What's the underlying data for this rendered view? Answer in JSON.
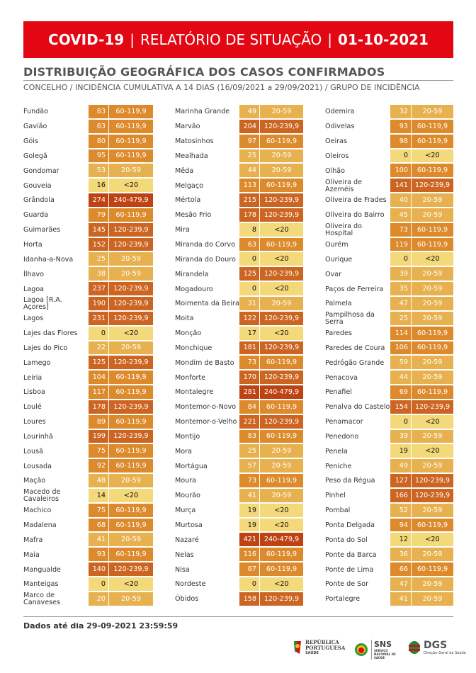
{
  "header": {
    "title": "COVID-19",
    "sep1": "|",
    "middle": "RELATÓRIO DE SITUAÇÃO",
    "sep2": "|",
    "date": "01-10-2021"
  },
  "title": "DISTRIBUIÇÃO GEOGRÁFICA DOS CASOS CONFIRMADOS",
  "subtitle": "CONCELHO / INCIDÊNCIA CUMULATIVA A 14 DIAS (16/09/2021 a 29/09/2021) / GRUPO DE INCIDÊNCIA",
  "band_colors": {
    "<20": "#f4d97a",
    "20-59": "#e8b14f",
    "60-119,9": "#dc8a2c",
    "120-239,9": "#cd6522",
    "240-479,9": "#bf4212"
  },
  "columns": [
    {
      "rows": [
        [
          "Fundão",
          "83",
          "60-119,9"
        ],
        [
          "Gavião",
          "63",
          "60-119,9"
        ],
        [
          "Góis",
          "80",
          "60-119,9"
        ],
        [
          "Golegã",
          "95",
          "60-119,9"
        ],
        [
          "Gondomar",
          "53",
          "20-59"
        ],
        [
          "Gouveia",
          "16",
          "<20"
        ],
        [
          "Grândola",
          "274",
          "240-479,9"
        ],
        [
          "Guarda",
          "79",
          "60-119,9"
        ],
        [
          "Guimarães",
          "145",
          "120-239,9"
        ],
        [
          "Horta",
          "152",
          "120-239,9"
        ],
        [
          "Idanha-a-Nova",
          "25",
          "20-59"
        ],
        [
          "Ílhavo",
          "38",
          "20-59"
        ],
        [
          "Lagoa",
          "237",
          "120-239,9"
        ],
        [
          "Lagoa [R.A. Açores]",
          "190",
          "120-239,9"
        ],
        [
          "Lagos",
          "231",
          "120-239,9"
        ],
        [
          "Lajes das Flores",
          "0",
          "<20"
        ],
        [
          "Lajes do Pico",
          "22",
          "20-59"
        ],
        [
          "Lamego",
          "125",
          "120-239,9"
        ],
        [
          "Leiria",
          "104",
          "60-119,9"
        ],
        [
          "Lisboa",
          "117",
          "60-119,9"
        ],
        [
          "Loulé",
          "178",
          "120-239,9"
        ],
        [
          "Loures",
          "89",
          "60-119,9"
        ],
        [
          "Lourinhã",
          "199",
          "120-239,9"
        ],
        [
          "Lousã",
          "75",
          "60-119,9"
        ],
        [
          "Lousada",
          "92",
          "60-119,9"
        ],
        [
          "Mação",
          "48",
          "20-59"
        ],
        [
          "Macedo de Cavaleiros",
          "14",
          "<20"
        ],
        [
          "Machico",
          "75",
          "60-119,9"
        ],
        [
          "Madalena",
          "68",
          "60-119,9"
        ],
        [
          "Mafra",
          "41",
          "20-59"
        ],
        [
          "Maia",
          "93",
          "60-119,9"
        ],
        [
          "Mangualde",
          "140",
          "120-239,9"
        ],
        [
          "Manteigas",
          "0",
          "<20"
        ],
        [
          "Marco de Canaveses",
          "20",
          "20-59"
        ]
      ]
    },
    {
      "rows": [
        [
          "Marinha Grande",
          "49",
          "20-59"
        ],
        [
          "Marvão",
          "204",
          "120-239,9"
        ],
        [
          "Matosinhos",
          "97",
          "60-119,9"
        ],
        [
          "Mealhada",
          "25",
          "20-59"
        ],
        [
          "Mêda",
          "44",
          "20-59"
        ],
        [
          "Melgaço",
          "113",
          "60-119,9"
        ],
        [
          "Mértola",
          "215",
          "120-239,9"
        ],
        [
          "Mesão Frio",
          "178",
          "120-239,9"
        ],
        [
          "Mira",
          "8",
          "<20"
        ],
        [
          "Miranda do Corvo",
          "63",
          "60-119,9"
        ],
        [
          "Miranda do Douro",
          "0",
          "<20"
        ],
        [
          "Mirandela",
          "125",
          "120-239,9"
        ],
        [
          "Mogadouro",
          "0",
          "<20"
        ],
        [
          "Moimenta da Beira",
          "31",
          "20-59"
        ],
        [
          "Moita",
          "122",
          "120-239,9"
        ],
        [
          "Monção",
          "17",
          "<20"
        ],
        [
          "Monchique",
          "181",
          "120-239,9"
        ],
        [
          "Mondim de Basto",
          "73",
          "60-119,9"
        ],
        [
          "Monforte",
          "170",
          "120-239,9"
        ],
        [
          "Montalegre",
          "281",
          "240-479,9"
        ],
        [
          "Montemor-o-Novo",
          "84",
          "60-119,9"
        ],
        [
          "Montemor-o-Velho",
          "221",
          "120-239,9"
        ],
        [
          "Montijo",
          "83",
          "60-119,9"
        ],
        [
          "Mora",
          "25",
          "20-59"
        ],
        [
          "Mortágua",
          "57",
          "20-59"
        ],
        [
          "Moura",
          "73",
          "60-119,9"
        ],
        [
          "Mourão",
          "41",
          "20-59"
        ],
        [
          "Murça",
          "19",
          "<20"
        ],
        [
          "Murtosa",
          "19",
          "<20"
        ],
        [
          "Nazaré",
          "421",
          "240-479,9"
        ],
        [
          "Nelas",
          "116",
          "60-119,9"
        ],
        [
          "Nisa",
          "67",
          "60-119,9"
        ],
        [
          "Nordeste",
          "0",
          "<20"
        ],
        [
          "Óbidos",
          "158",
          "120-239,9"
        ]
      ]
    },
    {
      "rows": [
        [
          "Odemira",
          "32",
          "20-59"
        ],
        [
          "Odivelas",
          "93",
          "60-119,9"
        ],
        [
          "Oeiras",
          "98",
          "60-119,9"
        ],
        [
          "Oleiros",
          "0",
          "<20"
        ],
        [
          "Olhão",
          "100",
          "60-119,9"
        ],
        [
          "Oliveira de Azeméis",
          "141",
          "120-239,9"
        ],
        [
          "Oliveira de Frades",
          "40",
          "20-59"
        ],
        [
          "Oliveira do Bairro",
          "45",
          "20-59"
        ],
        [
          "Oliveira do Hospital",
          "73",
          "60-119,9"
        ],
        [
          "Ourém",
          "119",
          "60-119,9"
        ],
        [
          "Ourique",
          "0",
          "<20"
        ],
        [
          "Ovar",
          "39",
          "20-59"
        ],
        [
          "Paços de Ferreira",
          "35",
          "20-59"
        ],
        [
          "Palmela",
          "47",
          "20-59"
        ],
        [
          "Pampilhosa da Serra",
          "25",
          "20-59"
        ],
        [
          "Paredes",
          "114",
          "60-119,9"
        ],
        [
          "Paredes de Coura",
          "106",
          "60-119,9"
        ],
        [
          "Pedrógão Grande",
          "59",
          "20-59"
        ],
        [
          "Penacova",
          "44",
          "20-59"
        ],
        [
          "Penafiel",
          "69",
          "60-119,9"
        ],
        [
          "Penalva do Castelo",
          "154",
          "120-239,9"
        ],
        [
          "Penamacor",
          "0",
          "<20"
        ],
        [
          "Penedono",
          "39",
          "20-59"
        ],
        [
          "Penela",
          "19",
          "<20"
        ],
        [
          "Peniche",
          "49",
          "20-59"
        ],
        [
          "Peso da Régua",
          "127",
          "120-239,9"
        ],
        [
          "Pinhel",
          "166",
          "120-239,9"
        ],
        [
          "Pombal",
          "52",
          "20-59"
        ],
        [
          "Ponta Delgada",
          "94",
          "60-119,9"
        ],
        [
          "Ponta do Sol",
          "12",
          "<20"
        ],
        [
          "Ponte da Barca",
          "36",
          "20-59"
        ],
        [
          "Ponte de Lima",
          "66",
          "60-119,9"
        ],
        [
          "Ponte de Sor",
          "47",
          "20-59"
        ],
        [
          "Portalegre",
          "41",
          "20-59"
        ]
      ]
    }
  ],
  "footer": "Dados até dia 29-09-2021 23:59:59",
  "logos": {
    "republica": "REPÚBLICA PORTUGUESA",
    "republica_sub": "SAÚDE",
    "sns": "SNS",
    "sns_sub": "SERVIÇO NACIONAL DE SAÚDE",
    "dgs": "DGS",
    "dgs_sub": "Direção-Geral da Saúde"
  }
}
